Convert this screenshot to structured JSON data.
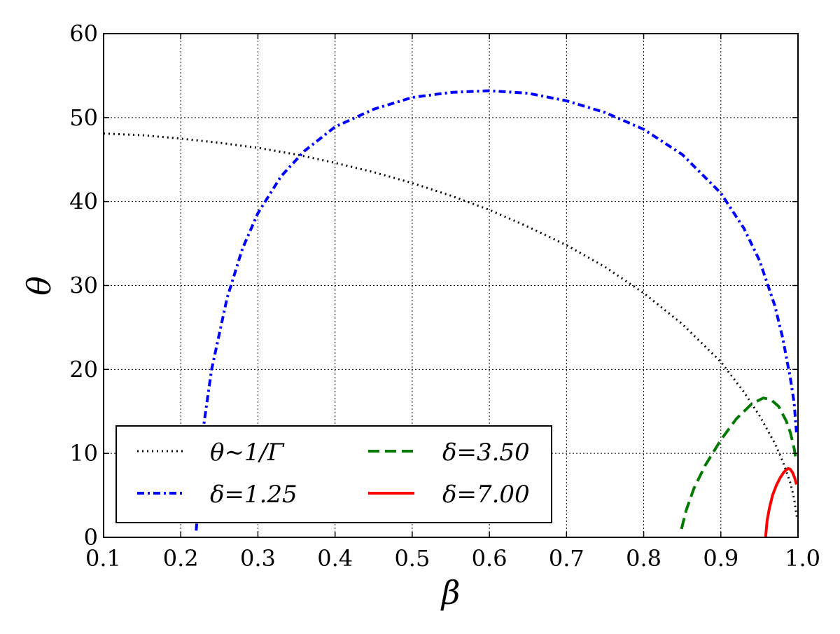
{
  "chart_data": {
    "type": "line",
    "xlabel": "β",
    "ylabel": "θ",
    "xlim": [
      0.1,
      1.0
    ],
    "ylim": [
      0,
      60
    ],
    "xticks": [
      "0.1",
      "0.2",
      "0.3",
      "0.4",
      "0.5",
      "0.6",
      "0.7",
      "0.8",
      "0.9",
      "1.0"
    ],
    "yticks": [
      "0",
      "10",
      "20",
      "30",
      "40",
      "50",
      "60"
    ],
    "grid": true,
    "legend_position": "lower-left",
    "series": [
      {
        "name": "θ∼1/Γ",
        "color": "#000000",
        "style": "dotted",
        "x": [
          0.1,
          0.15,
          0.2,
          0.25,
          0.3,
          0.35,
          0.4,
          0.45,
          0.5,
          0.55,
          0.6,
          0.65,
          0.7,
          0.75,
          0.8,
          0.85,
          0.9,
          0.93,
          0.95,
          0.97,
          0.98,
          0.99,
          0.995,
          0.999
        ],
        "y": [
          48.1,
          47.9,
          47.5,
          47.0,
          46.4,
          45.6,
          44.6,
          43.5,
          42.2,
          40.7,
          39.0,
          37.0,
          34.8,
          32.2,
          29.1,
          25.4,
          20.9,
          17.3,
          14.5,
          11.2,
          9.1,
          6.5,
          4.6,
          2.1
        ]
      },
      {
        "name": "δ=1.25",
        "color": "#0000ff",
        "style": "dashdot",
        "x": [
          0.22,
          0.225,
          0.23,
          0.24,
          0.26,
          0.28,
          0.3,
          0.33,
          0.36,
          0.4,
          0.45,
          0.5,
          0.55,
          0.6,
          0.65,
          0.7,
          0.75,
          0.8,
          0.85,
          0.9,
          0.93,
          0.95,
          0.97,
          0.98,
          0.99,
          0.995,
          0.998
        ],
        "y": [
          0.8,
          7.0,
          13.5,
          20.0,
          28.5,
          34.4,
          38.6,
          43.0,
          46.0,
          48.9,
          51.0,
          52.4,
          53.0,
          53.2,
          52.9,
          52.0,
          50.6,
          48.6,
          45.6,
          41.0,
          36.8,
          33.0,
          27.6,
          23.8,
          19.0,
          16.0,
          12.5
        ]
      },
      {
        "name": "δ=3.50",
        "color": "#007a00",
        "style": "dashed",
        "x": [
          0.849,
          0.855,
          0.865,
          0.88,
          0.9,
          0.92,
          0.94,
          0.955,
          0.965,
          0.975,
          0.985,
          0.99,
          0.995,
          0.998
        ],
        "y": [
          1.0,
          3.2,
          5.8,
          8.6,
          11.6,
          14.1,
          15.9,
          16.6,
          16.4,
          15.6,
          13.8,
          12.5,
          10.6,
          9.0
        ]
      },
      {
        "name": "δ=7.00",
        "color": "#ff0000",
        "style": "solid",
        "x": [
          0.958,
          0.96,
          0.963,
          0.967,
          0.972,
          0.977,
          0.982,
          0.987,
          0.99,
          0.993,
          0.996,
          0.998
        ],
        "y": [
          0.0,
          2.0,
          3.5,
          5.0,
          6.2,
          7.1,
          7.8,
          8.2,
          8.1,
          7.7,
          7.0,
          6.3
        ]
      }
    ]
  }
}
